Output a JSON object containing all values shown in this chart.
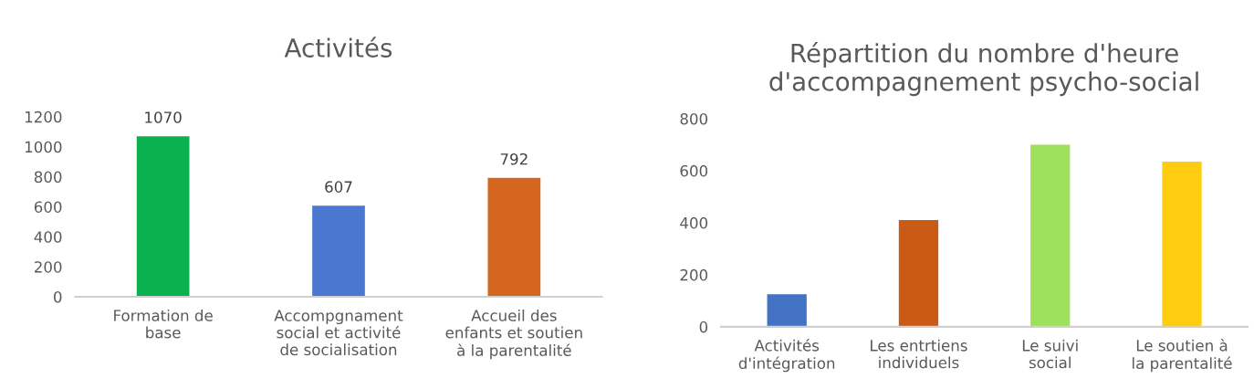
{
  "chart_data": [
    {
      "type": "bar",
      "title": "Activités",
      "categories": [
        "Formation de\nbase",
        "Accompgnament\nsocial et activité\nde socialisation",
        "Accueil des\nenfants et soutien\nà la parentalité"
      ],
      "values": [
        1070,
        607,
        792
      ],
      "colors": [
        "#0bb04f",
        "#4a78d0",
        "#d4661f"
      ],
      "data_labels": true,
      "ylim": [
        0,
        1200
      ],
      "yticks": [
        0,
        200,
        400,
        600,
        800,
        1000,
        1200
      ],
      "grid": false
    },
    {
      "type": "bar",
      "title": "Répartition du nombre d'heure\nd'accompagnement psycho-social",
      "categories": [
        "Activités\nd'intégration",
        "Les entrtiens\nindividuels",
        "Le suivi\nsocial",
        "Le soutien à\nla parentalité"
      ],
      "values": [
        125,
        410,
        700,
        635
      ],
      "colors": [
        "#4472c4",
        "#c95b16",
        "#9ee05a",
        "#ffcc10"
      ],
      "ylim": [
        0,
        800
      ],
      "yticks": [
        0,
        200,
        400,
        600,
        800
      ],
      "grid": false
    }
  ]
}
